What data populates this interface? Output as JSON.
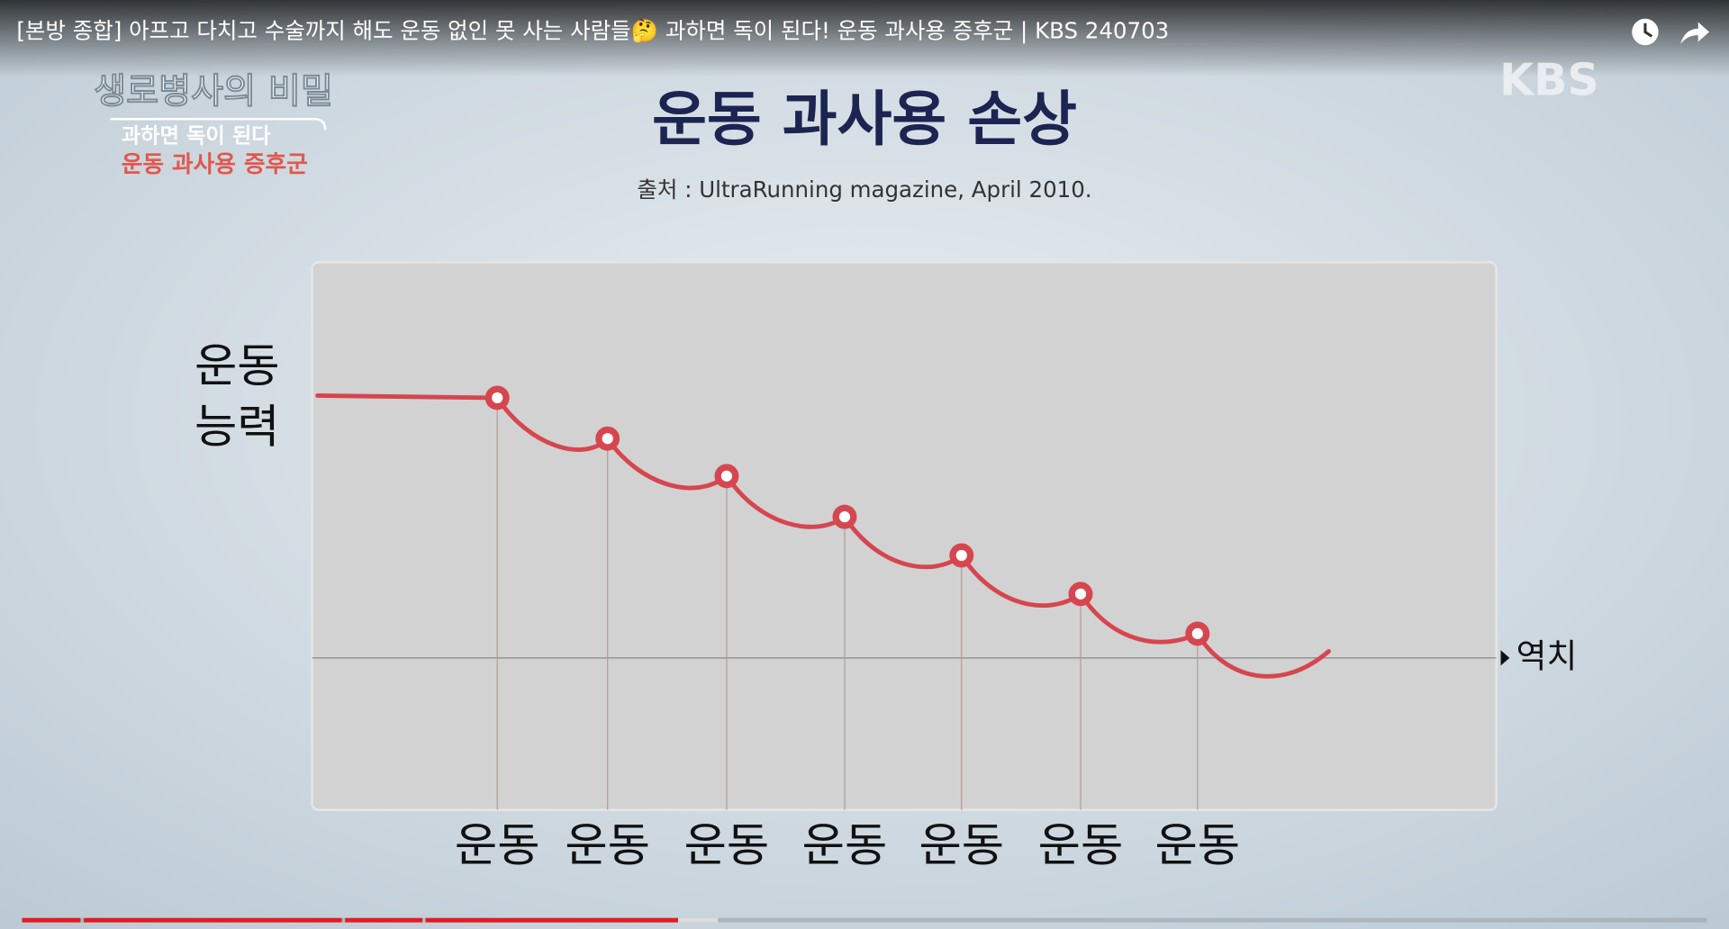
{
  "video": {
    "title": "[본방 종합] 아프고 다치고 수술까지 해도 운동 없인 못 사는 사람들🤔 과하면 독이 된다! 운동 과사용 증후군 | KBS 240703"
  },
  "overlay": {
    "program": "생로병사의 비밀",
    "subtitle_lines": [
      "과하면 독이 된다",
      "운동 과사용 증후군"
    ],
    "logo": "KBS"
  },
  "slide": {
    "title": "운동 과사용 손상",
    "source": "출처 : UltraRunning magazine, April 2010."
  },
  "diagram": {
    "y_label_lines": [
      "운동",
      "능력"
    ],
    "x_labels": [
      "운동",
      "운동",
      "운동",
      "운동",
      "운동",
      "운동",
      "운동"
    ],
    "threshold_label": "역치"
  }
}
